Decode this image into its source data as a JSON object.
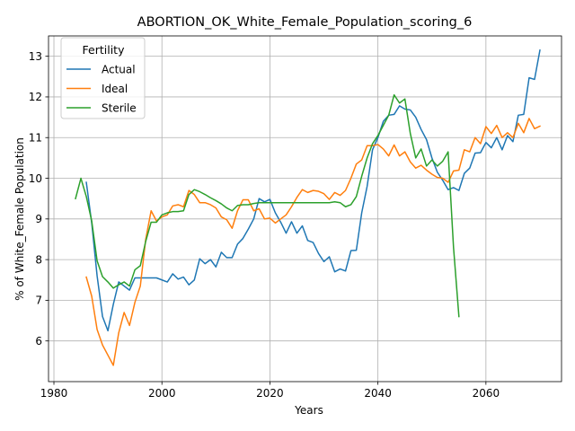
{
  "chart_data": {
    "type": "line",
    "title": "ABORTION_OK_White_Female_Population_scoring_6",
    "xlabel": "Years",
    "ylabel": "% of White_Female Population",
    "xlim": [
      1979,
      2074
    ],
    "ylim": [
      5.0,
      13.5
    ],
    "xticks": [
      1980,
      2000,
      2020,
      2040,
      2060
    ],
    "yticks": [
      6,
      7,
      8,
      9,
      10,
      11,
      12,
      13
    ],
    "grid": true,
    "legend": {
      "title": "Fertility",
      "position": "top-left"
    },
    "series": [
      {
        "name": "Actual",
        "color": "#1f77b4",
        "x": [
          1986,
          1987,
          1988,
          1989,
          1990,
          1991,
          1992,
          1993,
          1994,
          1995,
          1996,
          1997,
          1998,
          1999,
          2000,
          2001,
          2002,
          2003,
          2004,
          2005,
          2006,
          2007,
          2008,
          2009,
          2010,
          2011,
          2012,
          2013,
          2014,
          2015,
          2016,
          2017,
          2018,
          2019,
          2020,
          2021,
          2022,
          2023,
          2024,
          2025,
          2026,
          2027,
          2028,
          2029,
          2030,
          2031,
          2032,
          2033,
          2034,
          2035,
          2036,
          2037,
          2038,
          2039,
          2040,
          2041,
          2042,
          2043,
          2044,
          2045,
          2046,
          2047,
          2048,
          2049,
          2050,
          2051,
          2052,
          2053,
          2054,
          2055,
          2056,
          2057,
          2058,
          2059,
          2060,
          2061,
          2062,
          2063,
          2064,
          2065,
          2066,
          2067,
          2068,
          2069,
          2070
        ],
        "values": [
          9.9,
          8.9,
          7.6,
          6.6,
          6.25,
          6.9,
          7.45,
          7.35,
          7.25,
          7.55,
          7.55,
          7.55,
          7.55,
          7.55,
          7.5,
          7.45,
          7.65,
          7.52,
          7.57,
          7.38,
          7.5,
          8.02,
          7.9,
          8.0,
          7.82,
          8.18,
          8.05,
          8.05,
          8.38,
          8.52,
          8.75,
          9.0,
          9.5,
          9.42,
          9.48,
          9.15,
          8.92,
          8.65,
          8.93,
          8.65,
          8.83,
          8.47,
          8.42,
          8.15,
          7.95,
          8.07,
          7.7,
          7.77,
          7.72,
          8.22,
          8.23,
          9.15,
          9.8,
          10.7,
          11.0,
          11.4,
          11.55,
          11.57,
          11.78,
          11.7,
          11.68,
          11.5,
          11.2,
          10.95,
          10.5,
          10.15,
          9.95,
          9.72,
          9.77,
          9.7,
          10.12,
          10.25,
          10.62,
          10.63,
          10.88,
          10.75,
          11.0,
          10.7,
          11.05,
          10.9,
          11.55,
          11.57,
          12.47,
          12.43,
          13.15
        ]
      },
      {
        "name": "Ideal",
        "color": "#ff7f0e",
        "x": [
          1986,
          1987,
          1988,
          1989,
          1990,
          1991,
          1992,
          1993,
          1994,
          1995,
          1996,
          1997,
          1998,
          1999,
          2000,
          2001,
          2002,
          2003,
          2004,
          2005,
          2006,
          2007,
          2008,
          2009,
          2010,
          2011,
          2012,
          2013,
          2014,
          2015,
          2016,
          2017,
          2018,
          2019,
          2020,
          2021,
          2022,
          2023,
          2024,
          2025,
          2026,
          2027,
          2028,
          2029,
          2030,
          2031,
          2032,
          2033,
          2034,
          2035,
          2036,
          2037,
          2038,
          2039,
          2040,
          2041,
          2042,
          2043,
          2044,
          2045,
          2046,
          2047,
          2048,
          2049,
          2050,
          2051,
          2052,
          2053,
          2054,
          2055,
          2056,
          2057,
          2058,
          2059,
          2060,
          2061,
          2062,
          2063,
          2064,
          2065,
          2066,
          2067,
          2068,
          2069,
          2070
        ],
        "values": [
          7.57,
          7.1,
          6.28,
          5.9,
          5.65,
          5.4,
          6.2,
          6.7,
          6.38,
          6.95,
          7.35,
          8.5,
          9.2,
          8.95,
          9.05,
          9.1,
          9.32,
          9.35,
          9.3,
          9.7,
          9.6,
          9.4,
          9.4,
          9.35,
          9.27,
          9.05,
          8.98,
          8.77,
          9.2,
          9.47,
          9.47,
          9.2,
          9.25,
          9.0,
          9.02,
          8.9,
          9.0,
          9.1,
          9.3,
          9.53,
          9.72,
          9.65,
          9.7,
          9.68,
          9.62,
          9.48,
          9.65,
          9.58,
          9.7,
          10.0,
          10.35,
          10.45,
          10.8,
          10.8,
          10.83,
          10.72,
          10.55,
          10.82,
          10.55,
          10.65,
          10.4,
          10.25,
          10.32,
          10.2,
          10.1,
          10.02,
          10.0,
          9.9,
          10.18,
          10.2,
          10.7,
          10.65,
          11.0,
          10.85,
          11.27,
          11.1,
          11.3,
          11.0,
          11.12,
          11.0,
          11.35,
          11.12,
          11.47,
          11.22,
          11.28
        ]
      },
      {
        "name": "Sterile",
        "color": "#2ca02c",
        "x": [
          1984,
          1985,
          1986,
          1987,
          1988,
          1989,
          1990,
          1991,
          1992,
          1993,
          1994,
          1995,
          1996,
          1997,
          1998,
          1999,
          2000,
          2001,
          2002,
          2003,
          2004,
          2005,
          2006,
          2007,
          2008,
          2009,
          2010,
          2011,
          2012,
          2013,
          2014,
          2015,
          2016,
          2017,
          2018,
          2019,
          2020,
          2021,
          2022,
          2023,
          2024,
          2025,
          2026,
          2027,
          2028,
          2029,
          2030,
          2031,
          2032,
          2033,
          2034,
          2035,
          2036,
          2037,
          2038,
          2039,
          2040,
          2041,
          2042,
          2043,
          2044,
          2045,
          2046,
          2047,
          2048,
          2049,
          2050,
          2051,
          2052,
          2053,
          2054,
          2055
        ],
        "values": [
          9.5,
          10.0,
          9.55,
          8.95,
          7.97,
          7.58,
          7.45,
          7.3,
          7.38,
          7.45,
          7.35,
          7.75,
          7.85,
          8.45,
          8.92,
          8.92,
          9.1,
          9.15,
          9.18,
          9.18,
          9.2,
          9.6,
          9.72,
          9.67,
          9.6,
          9.52,
          9.45,
          9.37,
          9.27,
          9.2,
          9.33,
          9.35,
          9.35,
          9.38,
          9.4,
          9.4,
          9.4,
          9.4,
          9.4,
          9.4,
          9.4,
          9.4,
          9.4,
          9.4,
          9.4,
          9.4,
          9.4,
          9.4,
          9.42,
          9.4,
          9.3,
          9.35,
          9.55,
          10.05,
          10.5,
          10.85,
          11.05,
          11.3,
          11.55,
          12.05,
          11.85,
          11.95,
          11.1,
          10.5,
          10.72,
          10.3,
          10.45,
          10.3,
          10.42,
          10.65,
          8.3,
          6.6
        ]
      }
    ]
  }
}
